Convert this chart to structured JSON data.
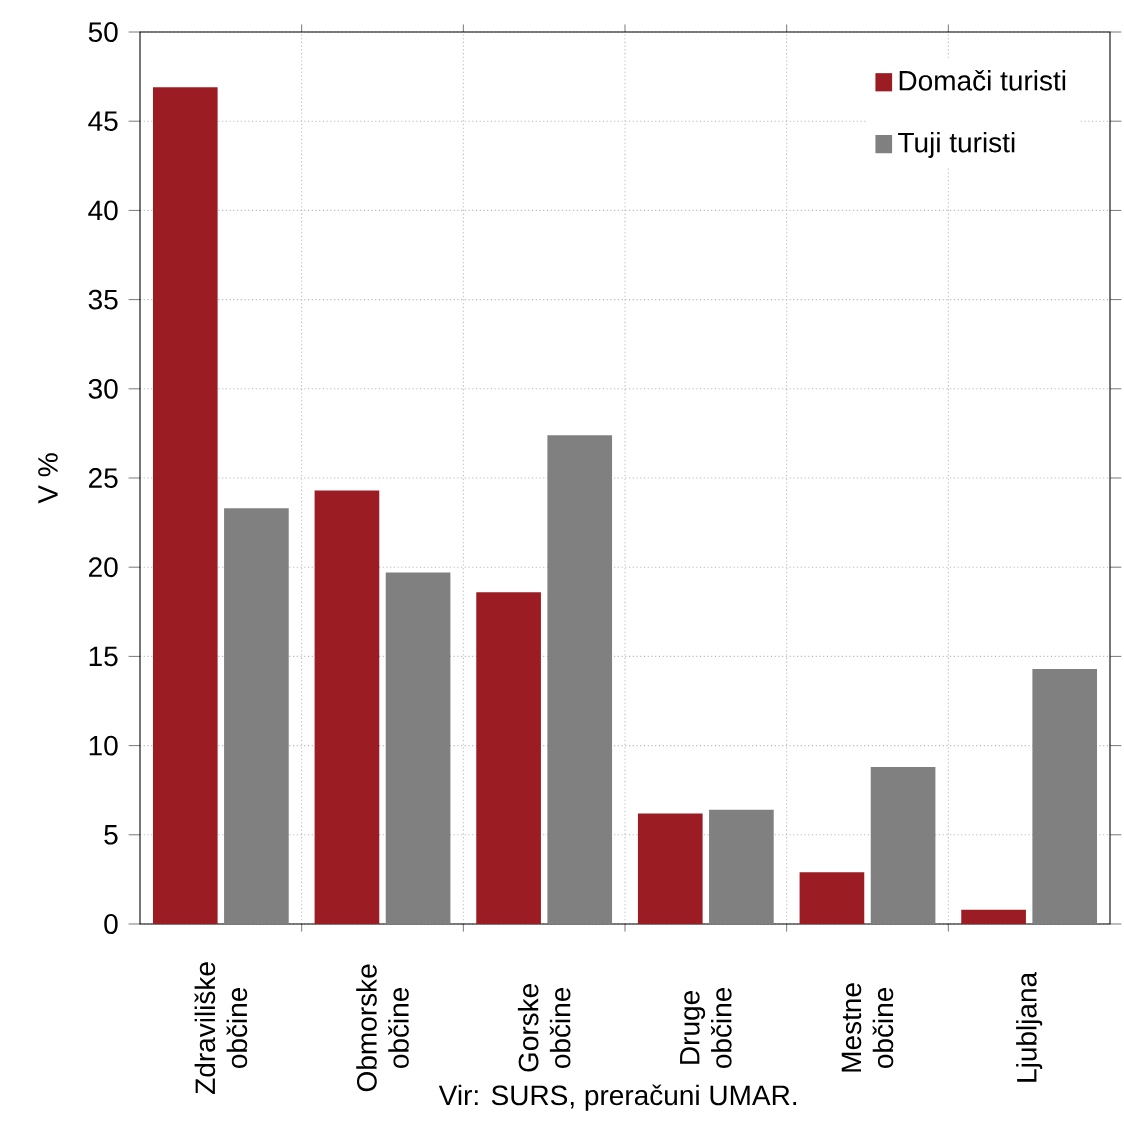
{
  "chart_data": {
    "type": "bar",
    "ylabel": "V %",
    "categories": [
      "Zdraviliške občine",
      "Obmorske občine",
      "Gorske občine",
      "Druge občine",
      "Mestne občine",
      "Ljubljana"
    ],
    "series": [
      {
        "name": "Domači turisti",
        "color": "#9b1c22",
        "values": [
          46.9,
          24.3,
          18.6,
          6.2,
          2.9,
          0.8
        ]
      },
      {
        "name": "Tuji turisti",
        "color": "#808080",
        "values": [
          23.3,
          19.7,
          27.4,
          6.4,
          8.8,
          14.3
        ]
      }
    ],
    "ylim": [
      0,
      50
    ],
    "yticks": [
      0,
      5,
      10,
      15,
      20,
      25,
      30,
      35,
      40,
      45,
      50
    ],
    "grid": true,
    "legend": "top right",
    "annotations": [
      "Vir: SURS, preračuni UMAR."
    ]
  }
}
